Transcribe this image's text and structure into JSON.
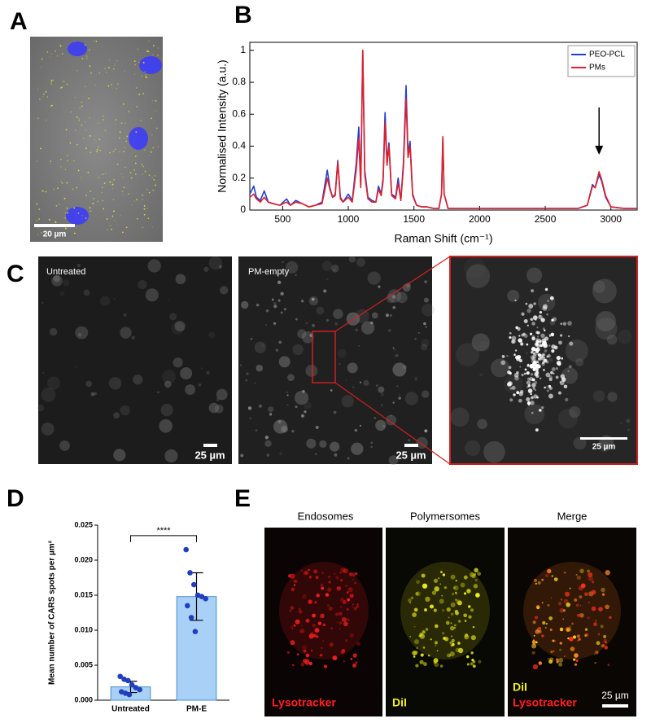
{
  "panels": {
    "letters": [
      "A",
      "B",
      "C",
      "D",
      "E"
    ],
    "a": {
      "scale_bar": "20 µm"
    },
    "c": {
      "untreated": "Untreated",
      "pm_empty": "PM-empty",
      "scale_bars": [
        "25 µm",
        "25 µm",
        "25 µm"
      ]
    },
    "e": {
      "headers": [
        "Endosomes",
        "Polymersomes",
        "Merge"
      ],
      "label_endo": "Lysotracker",
      "label_poly": "DiI",
      "label_merge_1": "DiI",
      "label_merge_2": "Lysotracker",
      "scale_bar": "25 µm"
    }
  },
  "chart_data": [
    {
      "type": "line",
      "xlabel": "Raman Shift (cm⁻¹)",
      "ylabel": "Normalised Intensity (a.u.)",
      "x": [
        250,
        280,
        300,
        330,
        360,
        390,
        430,
        480,
        530,
        560,
        600,
        650,
        700,
        750,
        800,
        840,
        860,
        880,
        900,
        920,
        940,
        960,
        1000,
        1030,
        1060,
        1080,
        1095,
        1110,
        1125,
        1150,
        1180,
        1210,
        1230,
        1250,
        1265,
        1280,
        1295,
        1310,
        1330,
        1360,
        1380,
        1400,
        1420,
        1440,
        1455,
        1470,
        1490,
        1520,
        1560,
        1600,
        1650,
        1690,
        1710,
        1720,
        1730,
        1760,
        1800,
        1900,
        2000,
        2200,
        2400,
        2600,
        2750,
        2820,
        2860,
        2880,
        2910,
        2930,
        2960,
        3000,
        3100,
        3200
      ],
      "series": [
        {
          "name": "PEO-PCL",
          "color": "#1f3fd0",
          "values": [
            0.1,
            0.15,
            0.08,
            0.06,
            0.12,
            0.05,
            0.04,
            0.03,
            0.07,
            0.03,
            0.06,
            0.04,
            0.02,
            0.03,
            0.05,
            0.25,
            0.14,
            0.08,
            0.1,
            0.31,
            0.08,
            0.05,
            0.1,
            0.06,
            0.29,
            0.52,
            0.15,
            1.0,
            0.25,
            0.08,
            0.06,
            0.05,
            0.15,
            0.1,
            0.2,
            0.61,
            0.3,
            0.42,
            0.1,
            0.08,
            0.2,
            0.06,
            0.3,
            0.78,
            0.35,
            0.43,
            0.1,
            0.03,
            0.02,
            0.02,
            0.01,
            0.01,
            0.1,
            0.45,
            0.1,
            0.01,
            0.01,
            0.01,
            0.01,
            0.01,
            0.01,
            0.01,
            0.01,
            0.03,
            0.16,
            0.14,
            0.22,
            0.18,
            0.08,
            0.02,
            0.01,
            0.01
          ]
        },
        {
          "name": "PMs",
          "color": "#e0202a",
          "values": [
            0.08,
            0.1,
            0.07,
            0.05,
            0.08,
            0.05,
            0.04,
            0.03,
            0.05,
            0.03,
            0.05,
            0.04,
            0.02,
            0.03,
            0.04,
            0.2,
            0.13,
            0.08,
            0.09,
            0.3,
            0.07,
            0.05,
            0.08,
            0.05,
            0.25,
            0.45,
            0.14,
            1.0,
            0.22,
            0.07,
            0.05,
            0.05,
            0.13,
            0.09,
            0.18,
            0.55,
            0.28,
            0.4,
            0.09,
            0.07,
            0.17,
            0.06,
            0.27,
            0.7,
            0.33,
            0.4,
            0.09,
            0.03,
            0.02,
            0.02,
            0.01,
            0.01,
            0.1,
            0.46,
            0.1,
            0.01,
            0.01,
            0.01,
            0.01,
            0.01,
            0.01,
            0.01,
            0.01,
            0.03,
            0.15,
            0.14,
            0.24,
            0.19,
            0.09,
            0.02,
            0.01,
            0.01
          ]
        }
      ],
      "xlim": [
        250,
        3200
      ],
      "xticks": [
        500,
        1000,
        1500,
        2000,
        2500,
        3000
      ],
      "ylim": [
        0,
        1.05
      ],
      "yticks": [
        0,
        0.2,
        0.4,
        0.6,
        0.8,
        1
      ],
      "legend": "northeast",
      "arrow_x": 2910
    },
    {
      "type": "bar",
      "ylabel": "Mean number of CARS spots per µm²",
      "categories": [
        "Untreated",
        "PM-E"
      ],
      "values": [
        0.0019,
        0.0148
      ],
      "errors": [
        0.0008,
        0.0034
      ],
      "points": [
        [
          0.0034,
          0.003,
          0.0028,
          0.0022,
          0.0018,
          0.0015,
          0.0012,
          0.001,
          0.0008
        ],
        [
          0.0215,
          0.0182,
          0.0165,
          0.015,
          0.0148,
          0.0145,
          0.0135,
          0.0118,
          0.0098
        ]
      ],
      "color": "#a9d1f7",
      "point_color": "#1f3fbf",
      "ylim": [
        0,
        0.025
      ],
      "yticks": [
        {
          "value": 0,
          "label": "0.000"
        },
        {
          "value": 0.005,
          "label": "0.005"
        },
        {
          "value": 0.01,
          "label": "0.010"
        },
        {
          "value": 0.015,
          "label": "0.015"
        },
        {
          "value": 0.02,
          "label": "0.020"
        },
        {
          "value": 0.025,
          "label": "0.025"
        }
      ],
      "annotation": "****",
      "annotation_y": 0.0235
    }
  ]
}
